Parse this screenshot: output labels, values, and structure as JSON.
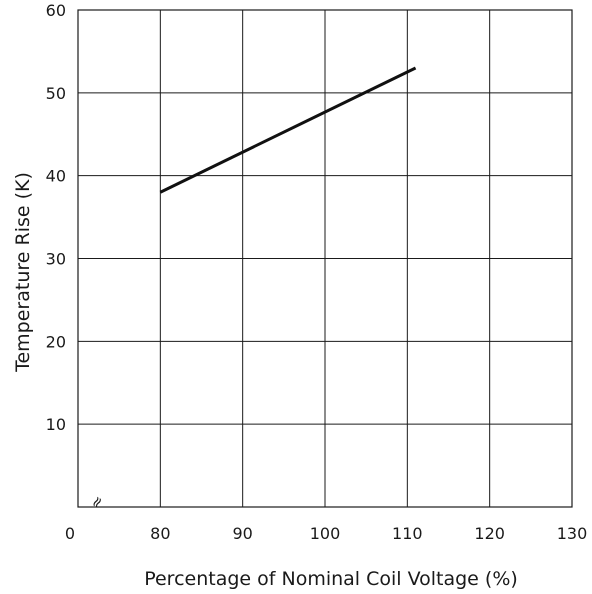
{
  "chart_data": {
    "type": "line",
    "title": "",
    "xlabel": "Percentage of Nominal Coil Voltage (%)",
    "ylabel": "Temperature Rise (K)",
    "xlim": [
      0,
      130
    ],
    "ylim": [
      0,
      60
    ],
    "x_ticks": [
      0,
      80,
      90,
      100,
      110,
      120,
      130
    ],
    "y_ticks": [
      10,
      20,
      30,
      40,
      50,
      60
    ],
    "axis_break_symbol": "≈",
    "grid": true,
    "line_color": "#111111",
    "series": [
      {
        "x": [
          80,
          111
        ],
        "y": [
          38,
          53
        ]
      }
    ]
  }
}
